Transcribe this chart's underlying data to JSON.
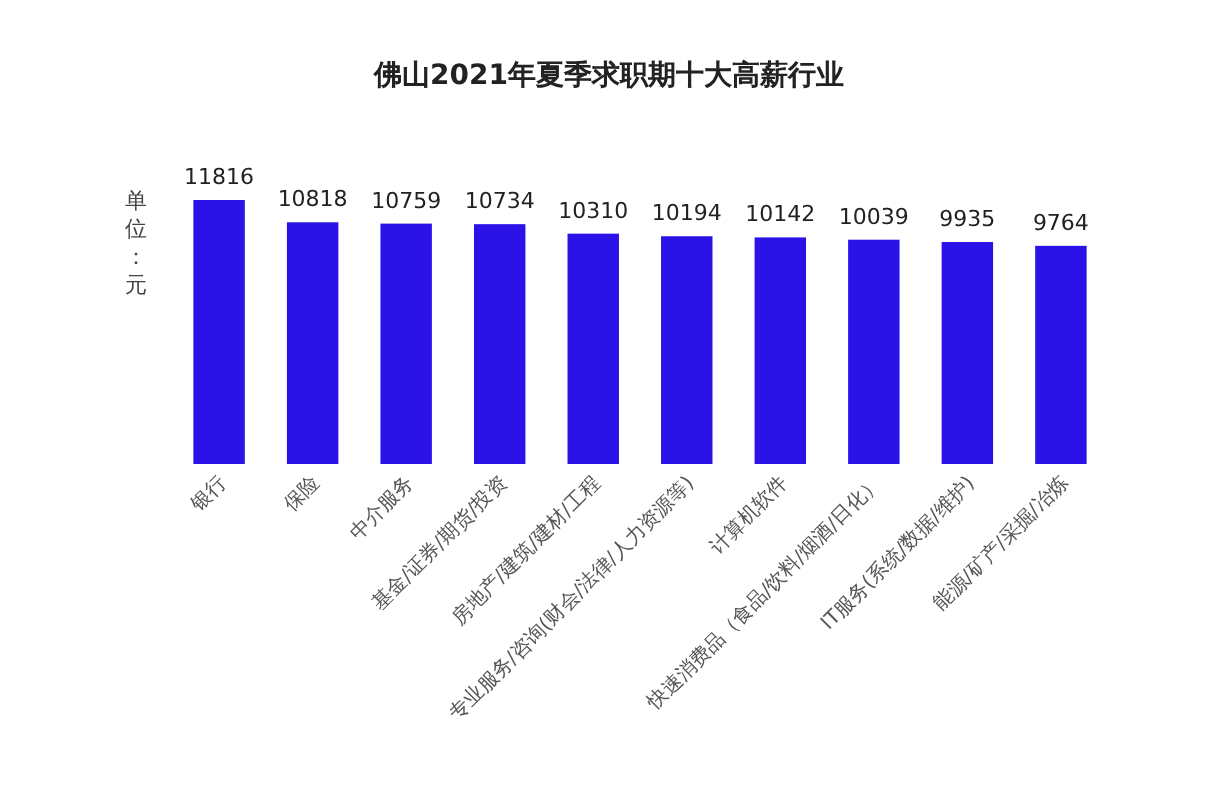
{
  "chart_data": {
    "type": "bar",
    "title": "佛山2021年夏季求职期十大高薪行业",
    "ylabel": "单位：元",
    "categories": [
      "银行",
      "保险",
      "中介服务",
      "基金/证券/期货/投资",
      "房地产/建筑/建材/工程",
      "专业服务/咨询(财会/法律/人力资源等)",
      "计算机软件",
      "快速消费品（食品/饮料/烟酒/日化）",
      "IT服务(系统/数据/维护)",
      "能源/矿产/采掘/冶炼"
    ],
    "values": [
      11816,
      10818,
      10759,
      10734,
      10310,
      10194,
      10142,
      10039,
      9935,
      9764
    ],
    "color": "#2b12e6",
    "data_labels": true
  }
}
